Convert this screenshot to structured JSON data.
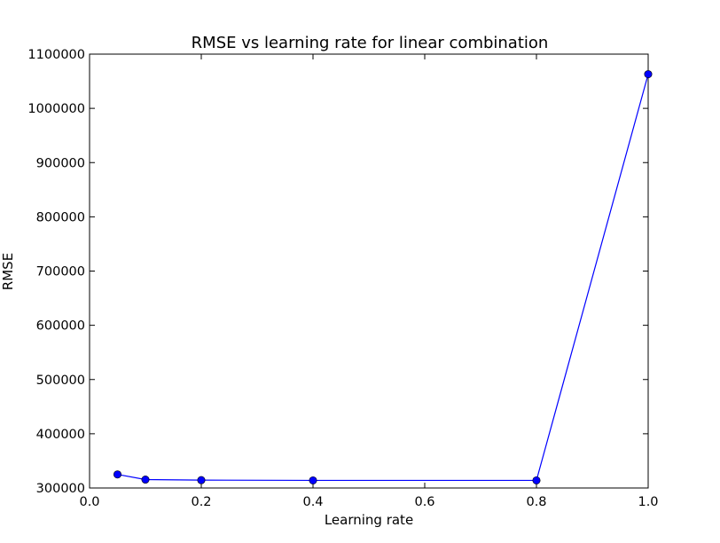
{
  "chart_data": {
    "type": "line",
    "title": "RMSE vs learning rate for linear combination",
    "xlabel": "Learning rate",
    "ylabel": "RMSE",
    "xlim": [
      0.0,
      1.0
    ],
    "ylim": [
      300000,
      1100000
    ],
    "x_ticks": [
      "0.0",
      "0.2",
      "0.4",
      "0.6",
      "0.8",
      "1.0"
    ],
    "y_ticks": [
      "300000",
      "400000",
      "500000",
      "600000",
      "700000",
      "800000",
      "900000",
      "1000000",
      "1100000"
    ],
    "grid": false,
    "legend": "none",
    "series": [
      {
        "color": "#0000ff",
        "marker": "circle",
        "x": [
          0.05,
          0.1,
          0.2,
          0.4,
          0.8,
          1.0
        ],
        "y": [
          325000,
          315500,
          314500,
          314000,
          314000,
          1063000
        ]
      }
    ]
  }
}
